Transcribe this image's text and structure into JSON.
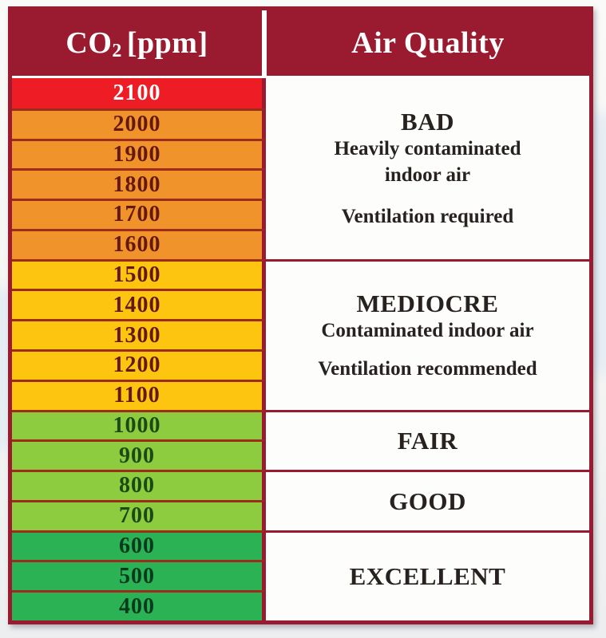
{
  "title": "CO2 ppm vs Air Quality reference table",
  "colors": {
    "maroon": "#9a1b2f",
    "row_divider": "#9e2c1d",
    "red": "#ee1c25",
    "orange": "#f0932a",
    "yellow": "#fdc50f",
    "light_green": "#8ecc3f",
    "green": "#2bb254",
    "number_dark_red": "#64180e",
    "number_dark_green": "#1b4a16",
    "number_darkest_green": "#083a1d",
    "header_text": "#ffffff",
    "quality_text": "#272220",
    "white_cell": "#fdfdfb"
  },
  "header": {
    "co2_base": "CO",
    "co2_sub": "2",
    "co2_unit": "[ppm]",
    "air_quality": "Air Quality"
  },
  "rows": [
    {
      "value": "2100",
      "band": "red"
    },
    {
      "value": "2000",
      "band": "orange"
    },
    {
      "value": "1900",
      "band": "orange"
    },
    {
      "value": "1800",
      "band": "orange"
    },
    {
      "value": "1700",
      "band": "orange"
    },
    {
      "value": "1600",
      "band": "orange"
    },
    {
      "value": "1500",
      "band": "yellow"
    },
    {
      "value": "1400",
      "band": "yellow"
    },
    {
      "value": "1300",
      "band": "yellow"
    },
    {
      "value": "1200",
      "band": "yellow"
    },
    {
      "value": "1100",
      "band": "yellow"
    },
    {
      "value": "1000",
      "band": "light_green"
    },
    {
      "value": "900",
      "band": "light_green"
    },
    {
      "value": "800",
      "band": "light_green"
    },
    {
      "value": "700",
      "band": "light_green"
    },
    {
      "value": "600",
      "band": "green"
    },
    {
      "value": "500",
      "band": "green"
    },
    {
      "value": "400",
      "band": "green"
    }
  ],
  "quality": {
    "bad": {
      "title": "BAD",
      "desc_line1": "Heavily contaminated",
      "desc_line2": "indoor air",
      "note": "Ventilation required"
    },
    "mediocre": {
      "title": "MEDIOCRE",
      "desc_line1": "Contaminated indoor air",
      "note": "Ventilation recommended"
    },
    "fair": {
      "title": "FAIR"
    },
    "good": {
      "title": "GOOD"
    },
    "excellent": {
      "title": "EXCELLENT"
    }
  },
  "chart_data": {
    "type": "table",
    "title": "CO2 [ppm] vs Air Quality",
    "columns": [
      "CO2 [ppm]",
      "Air Quality"
    ],
    "co2_ppm_values": [
      2100,
      2000,
      1900,
      1800,
      1700,
      1600,
      1500,
      1400,
      1300,
      1200,
      1100,
      1000,
      900,
      800,
      700,
      600,
      500,
      400
    ],
    "bands": [
      {
        "quality": "BAD",
        "ppm_min": 1600,
        "ppm_max": 2100,
        "description": "Heavily contaminated indoor air",
        "recommendation": "Ventilation required",
        "row_colors": [
          "red",
          "orange"
        ]
      },
      {
        "quality": "MEDIOCRE",
        "ppm_min": 1100,
        "ppm_max": 1500,
        "description": "Contaminated indoor air",
        "recommendation": "Ventilation recommended",
        "row_colors": [
          "yellow"
        ]
      },
      {
        "quality": "FAIR",
        "ppm_min": 900,
        "ppm_max": 1000,
        "description": "",
        "recommendation": "",
        "row_colors": [
          "light_green"
        ]
      },
      {
        "quality": "GOOD",
        "ppm_min": 700,
        "ppm_max": 800,
        "description": "",
        "recommendation": "",
        "row_colors": [
          "light_green"
        ]
      },
      {
        "quality": "EXCELLENT",
        "ppm_min": 400,
        "ppm_max": 600,
        "description": "",
        "recommendation": "",
        "row_colors": [
          "green"
        ]
      }
    ],
    "legend_position": "none",
    "grid": false
  }
}
